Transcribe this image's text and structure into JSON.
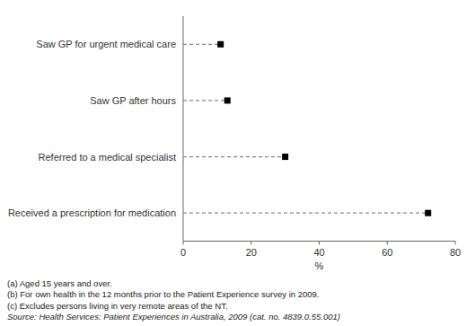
{
  "chart_data": {
    "type": "lollipop",
    "orientation": "horizontal",
    "categories": [
      "Saw GP for urgent medical care",
      "Saw GP after hours",
      "Referred to a medical specialist",
      "Received a prescription for medication"
    ],
    "values": [
      11,
      13,
      30,
      72
    ],
    "xlabel": "%",
    "xlim": [
      0,
      80
    ],
    "xticks": [
      0,
      20,
      40,
      60,
      80
    ],
    "color": "#000000",
    "marker": "square",
    "line_style": "dashed",
    "grid": false,
    "annotations": [
      "(a) Aged 15 years and over.",
      "(b) For own health in the 12 months prior to the Patient Experience survey in 2009.",
      "(c) Excludes persons living in very remote areas of the NT.",
      "Source: Health Services: Patient Experiences in Australia, 2009 (cat. no. 4839.0.55.001)"
    ]
  }
}
